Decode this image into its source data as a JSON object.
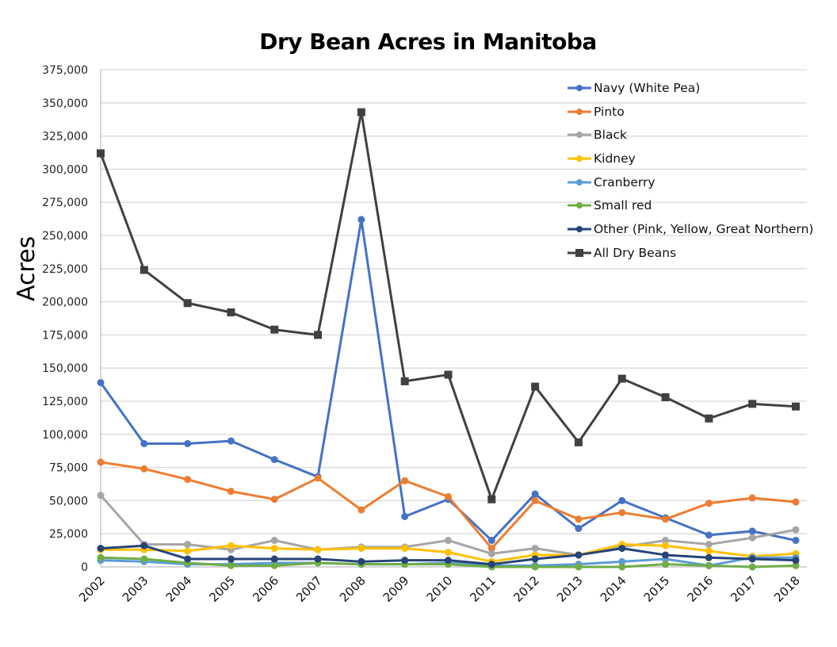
{
  "chart_data": {
    "type": "line",
    "title": "Dry Bean Acres in Manitoba",
    "xlabel": "",
    "ylabel": "Acres",
    "ylim": [
      0,
      375000
    ],
    "yticks": [
      0,
      25000,
      50000,
      75000,
      100000,
      125000,
      150000,
      175000,
      200000,
      225000,
      250000,
      275000,
      300000,
      325000,
      350000,
      375000
    ],
    "ytick_labels": [
      "0",
      "25,000",
      "50,000",
      "75,000",
      "100,000",
      "125,000",
      "150,000",
      "175,000",
      "200,000",
      "225,000",
      "250,000",
      "275,000",
      "300,000",
      "325,000",
      "350,000",
      "375,000"
    ],
    "grid": true,
    "legend_position": "top-right (inside plot)",
    "x": [
      "2002",
      "2003",
      "2004",
      "2005",
      "2006",
      "2007",
      "2008",
      "2009",
      "2010",
      "2011",
      "2012",
      "2013",
      "2014",
      "2015",
      "2016",
      "2017",
      "2018"
    ],
    "series": [
      {
        "name": "Navy (White Pea)",
        "color": "#4472C4",
        "marker": "circle",
        "values": [
          139000,
          93000,
          93000,
          95000,
          81000,
          68000,
          262000,
          38000,
          51000,
          20000,
          55000,
          29000,
          50000,
          37000,
          24000,
          27000,
          20000
        ]
      },
      {
        "name": "Pinto",
        "color": "#ED7D31",
        "marker": "circle",
        "values": [
          79000,
          74000,
          66000,
          57000,
          51000,
          67000,
          43000,
          65000,
          53000,
          14000,
          50000,
          36000,
          41000,
          36000,
          48000,
          52000,
          49000
        ]
      },
      {
        "name": "Black",
        "color": "#A5A5A5",
        "marker": "circle",
        "values": [
          54000,
          17000,
          17000,
          13000,
          20000,
          13000,
          15000,
          15000,
          20000,
          10000,
          14000,
          9000,
          15000,
          20000,
          17000,
          22000,
          28000
        ]
      },
      {
        "name": "Kidney",
        "color": "#FFC000",
        "marker": "circle",
        "values": [
          13000,
          13000,
          12000,
          16000,
          14000,
          13000,
          14000,
          14000,
          11000,
          4000,
          9000,
          9000,
          17000,
          16000,
          12000,
          8000,
          10000
        ]
      },
      {
        "name": "Cranberry",
        "color": "#5B9BD5",
        "marker": "circle",
        "values": [
          5000,
          4000,
          2000,
          2000,
          3000,
          3000,
          2000,
          2000,
          3000,
          1000,
          1000,
          2000,
          4000,
          6000,
          1000,
          7000,
          7000
        ]
      },
      {
        "name": "Small red",
        "color": "#70AD47",
        "marker": "circle",
        "values": [
          7000,
          6000,
          3000,
          1000,
          1000,
          3000,
          2000,
          2000,
          2000,
          0,
          0,
          0,
          0,
          2000,
          1000,
          0,
          1000
        ]
      },
      {
        "name": "Other (Pink, Yellow, Great Northern)",
        "color": "#264478",
        "marker": "circle",
        "values": [
          14000,
          16000,
          6000,
          6000,
          6000,
          6000,
          4000,
          5000,
          5000,
          2000,
          6000,
          9000,
          14000,
          9000,
          7000,
          6000,
          5000
        ]
      },
      {
        "name": "All Dry Beans",
        "color": "#404040",
        "marker": "square",
        "values": [
          312000,
          224000,
          199000,
          192000,
          179000,
          175000,
          343000,
          140000,
          145000,
          51000,
          136000,
          94000,
          142000,
          128000,
          112000,
          123000,
          121000
        ]
      }
    ]
  },
  "legend": {
    "items": [
      {
        "label": "Navy (White Pea)",
        "color": "#4472C4",
        "marker": "circle"
      },
      {
        "label": "Pinto",
        "color": "#ED7D31",
        "marker": "circle"
      },
      {
        "label": "Black",
        "color": "#A5A5A5",
        "marker": "circle"
      },
      {
        "label": "Kidney",
        "color": "#FFC000",
        "marker": "circle"
      },
      {
        "label": "Cranberry",
        "color": "#5B9BD5",
        "marker": "circle"
      },
      {
        "label": "Small red",
        "color": "#70AD47",
        "marker": "circle"
      },
      {
        "label": "Other (Pink, Yellow, Great Northern)",
        "color": "#264478",
        "marker": "circle"
      },
      {
        "label": "All Dry Beans",
        "color": "#404040",
        "marker": "square"
      }
    ]
  }
}
